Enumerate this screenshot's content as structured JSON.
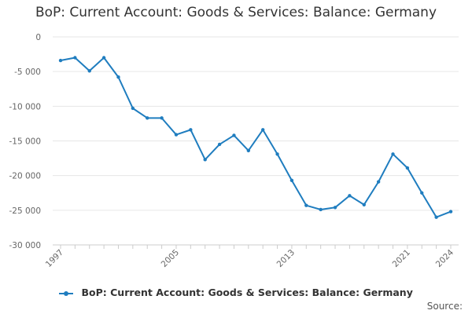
{
  "chart_data": {
    "type": "line",
    "title": "BoP: Current Account: Goods & Services: Balance: Germany",
    "xlabel": "",
    "ylabel": "",
    "x": [
      1997,
      1998,
      1999,
      2000,
      2001,
      2002,
      2003,
      2004,
      2005,
      2006,
      2007,
      2008,
      2009,
      2010,
      2011,
      2012,
      2013,
      2014,
      2015,
      2016,
      2017,
      2018,
      2019,
      2020,
      2021,
      2022,
      2023,
      2024
    ],
    "series": [
      {
        "name": "BoP: Current Account: Goods & Services: Balance: Germany",
        "color": "#1f7dbf",
        "values": [
          -3400,
          -3000,
          -4900,
          -3000,
          -5800,
          -10300,
          -11700,
          -11700,
          -14100,
          -13400,
          -17700,
          -15500,
          -14200,
          -16400,
          -13400,
          -16900,
          -20700,
          -24300,
          -24900,
          -24600,
          -22900,
          -24200,
          -20900,
          -16900,
          -18900,
          -22500,
          -26000,
          -25200
        ]
      }
    ],
    "xticks": [
      "1997",
      "2005",
      "2013",
      "2021",
      "2024"
    ],
    "yticks": [
      "0",
      "-5 000",
      "-10 000",
      "-15 000",
      "-20 000",
      "-25 000",
      "-30 000"
    ],
    "ytick_values": [
      0,
      -5000,
      -10000,
      -15000,
      -20000,
      -25000,
      -30000
    ],
    "xtick_values": [
      1997,
      2005,
      2013,
      2021,
      2024
    ],
    "ylim": [
      -30000,
      0
    ],
    "xlim": [
      1997,
      2024
    ],
    "grid": true,
    "legend_position": "bottom-center"
  },
  "legend": {
    "label": "BoP: Current Account: Goods & Services: Balance: Germany"
  },
  "source_label": "Source:"
}
